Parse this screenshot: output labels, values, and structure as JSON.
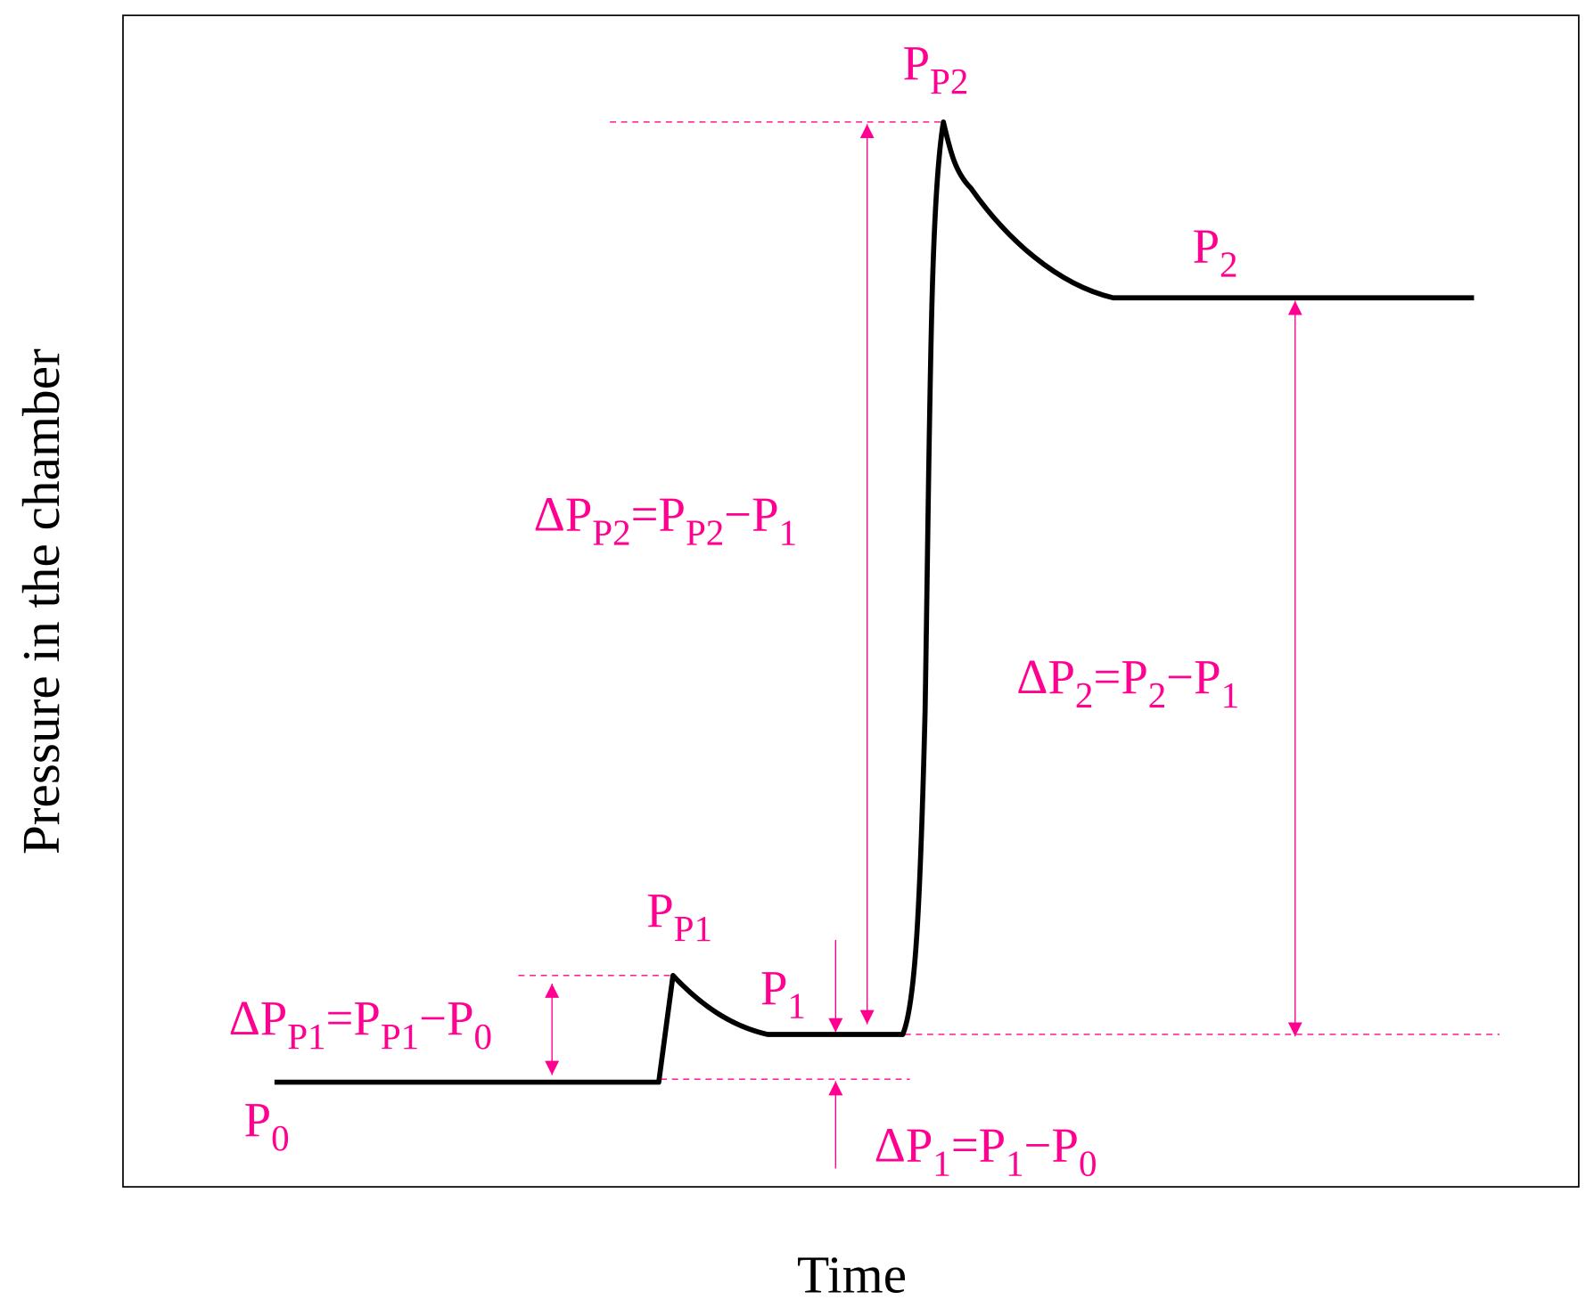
{
  "axes": {
    "x_label": "Time",
    "y_label": "Pressure in the chamber"
  },
  "labels": [
    {
      "parts": [
        {
          "text": "P",
          "sub": false
        },
        {
          "text": "0",
          "sub": true
        }
      ]
    },
    {
      "parts": [
        {
          "text": "P",
          "sub": false
        },
        {
          "text": "P1",
          "sub": true
        }
      ]
    },
    {
      "parts": [
        {
          "text": "P",
          "sub": false
        },
        {
          "text": "1",
          "sub": true
        }
      ]
    },
    {
      "parts": [
        {
          "text": "P",
          "sub": false
        },
        {
          "text": "P2",
          "sub": true
        }
      ]
    },
    {
      "parts": [
        {
          "text": "P",
          "sub": false
        },
        {
          "text": "2",
          "sub": true
        }
      ]
    },
    {
      "parts": [
        {
          "text": "ΔP",
          "sub": false
        },
        {
          "text": "P1",
          "sub": true
        },
        {
          "text": "=P",
          "sub": false
        },
        {
          "text": "P1",
          "sub": true
        },
        {
          "text": "−P",
          "sub": false
        },
        {
          "text": "0",
          "sub": true
        }
      ]
    },
    {
      "parts": [
        {
          "text": "ΔP",
          "sub": false
        },
        {
          "text": "1",
          "sub": true
        },
        {
          "text": "=P",
          "sub": false
        },
        {
          "text": "1",
          "sub": true
        },
        {
          "text": "−P",
          "sub": false
        },
        {
          "text": "0",
          "sub": true
        }
      ]
    },
    {
      "parts": [
        {
          "text": "ΔP",
          "sub": false
        },
        {
          "text": "P2",
          "sub": true
        },
        {
          "text": "=P",
          "sub": false
        },
        {
          "text": "P2",
          "sub": true
        },
        {
          "text": "−P",
          "sub": false
        },
        {
          "text": "1",
          "sub": true
        }
      ]
    },
    {
      "parts": [
        {
          "text": "ΔP",
          "sub": false
        },
        {
          "text": "2",
          "sub": true
        },
        {
          "text": "=P",
          "sub": false
        },
        {
          "text": "2",
          "sub": true
        },
        {
          "text": "−P",
          "sub": false
        },
        {
          "text": "1",
          "sub": true
        }
      ]
    }
  ]
}
